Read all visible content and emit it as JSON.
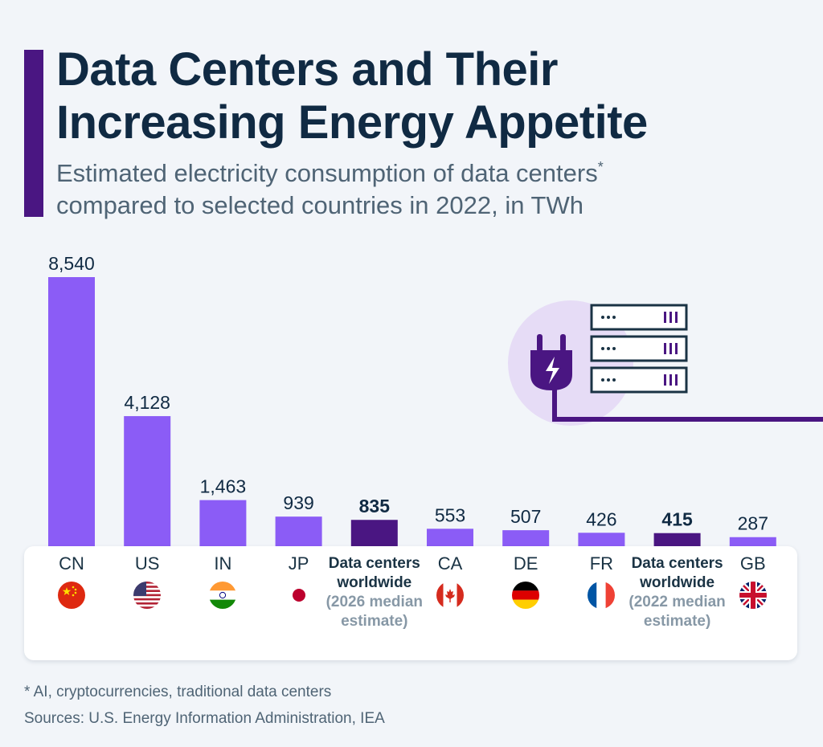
{
  "header": {
    "title_line1": "Data Centers and Their",
    "title_line2": "Increasing Energy Appetite",
    "subtitle_line1": "Estimated electricity consumption of data centers",
    "subtitle_asterisk": "*",
    "subtitle_line2": "compared to selected countries in 2022, in TWh"
  },
  "colors": {
    "country_bar": "#8b5cf6",
    "datacenter_bar": "#4a1682",
    "accent": "#4a1682",
    "text": "#102a43"
  },
  "chart_data": {
    "type": "bar",
    "title": "Data Centers and Their Increasing Energy Appetite",
    "subtitle": "Estimated electricity consumption of data centers* compared to selected countries in 2022, in TWh",
    "categories": [
      "CN",
      "US",
      "IN",
      "JP",
      "Data centers worldwide",
      "CA",
      "DE",
      "FR",
      "Data centers worldwide",
      "GB"
    ],
    "category_subtitles": [
      "",
      "",
      "",
      "",
      "(2026 median estimate)",
      "",
      "",
      "",
      "(2022 median estimate)",
      ""
    ],
    "values": [
      8540,
      4128,
      1463,
      939,
      835,
      553,
      507,
      426,
      415,
      287
    ],
    "value_labels": [
      "8,540",
      "4,128",
      "1,463",
      "939",
      "835",
      "553",
      "507",
      "426",
      "415",
      "287"
    ],
    "highlighted": [
      false,
      false,
      false,
      false,
      true,
      false,
      false,
      false,
      true,
      false
    ],
    "flags": [
      "china-flag",
      "usa-flag",
      "india-flag",
      "japan-flag",
      "",
      "canada-flag",
      "germany-flag",
      "france-flag",
      "",
      "uk-flag"
    ],
    "ylim": [
      0,
      8540
    ],
    "xlabel": "",
    "ylabel": "",
    "grid": false,
    "legend": "none"
  },
  "illustration": {
    "icon": "plug-and-server-rack-icon"
  },
  "footer": {
    "footnote": "* AI, cryptocurrencies, traditional data centers",
    "sources": "Sources: U.S. Energy Information Administration, IEA"
  }
}
